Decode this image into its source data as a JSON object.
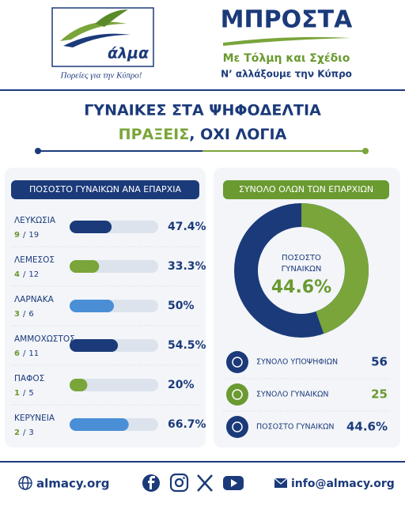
{
  "header": {
    "logo_text": "άλμα",
    "logo_slogan": "Πορείες για την Κύπρο!",
    "title": "ΜΠΡΟΣΤΑ",
    "subtitle": "Με Τόλμη και Σχέδιο",
    "tagline": "Ν’ αλλάξουμε την Κύπρο"
  },
  "headline": {
    "line1": "ΓΥΝΑΙΚΕΣ ΣΤΑ ΨΗΦΟΔΕΛΤΙΑ",
    "line2_accent": "ΠΡΑΞΕΙΣ",
    "line2_rest": ", ΟΧΙ ΛΟΓΙΑ"
  },
  "districts": {
    "title": "ΠΟΣΟΣΤΟ ΓΥΝΑΙΚΩΝ ΑΝΑ ΕΠΑΡΧΙΑ",
    "separator": "/",
    "xlim": [
      0,
      100
    ],
    "rows": [
      {
        "name": "ΛΕΥΚΩΣΙΑ",
        "women": 9,
        "total": 19,
        "percent": 47.4,
        "percent_label": "47.4%",
        "color": "#1b3a7a"
      },
      {
        "name": "ΛΕΜΕΣΟΣ",
        "women": 4,
        "total": 12,
        "percent": 33.3,
        "percent_label": "33.3%",
        "color": "#7aa53a"
      },
      {
        "name": "ΛΑΡΝΑΚΑ",
        "women": 3,
        "total": 6,
        "percent": 50,
        "percent_label": "50%",
        "color": "#4a8fd6"
      },
      {
        "name": "ΑΜΜΟΧΩΣΤΟΣ",
        "women": 6,
        "total": 11,
        "percent": 54.5,
        "percent_label": "54.5%",
        "color": "#1b3a7a"
      },
      {
        "name": "ΠΑΦΟΣ",
        "women": 1,
        "total": 5,
        "percent": 20,
        "percent_label": "20%",
        "color": "#7aa53a"
      },
      {
        "name": "ΚΕΡΥΝΕΙΑ",
        "women": 2,
        "total": 3,
        "percent": 66.7,
        "percent_label": "66.7%",
        "color": "#4a8fd6"
      }
    ]
  },
  "total": {
    "title": "ΣΥΝΟΛΟ ΟΛΩΝ ΤΩΝ ΕΠΑΡΧΙΩΝ",
    "donut_label": [
      "ΠΟΣΟΣΤΟ",
      "ΓΥΝΑΙΚΩΝ"
    ],
    "percent": 44.6,
    "percent_label": "44.6%",
    "range": [
      0,
      100
    ],
    "stats": [
      {
        "label": "ΣΥΝΟΛΟ ΥΠΟΨΗΦΙΩΝ",
        "value": 56
      },
      {
        "label": "ΣΥΝΟΛΟ ΓΥΝΑΙΚΩΝ",
        "value": 25
      },
      {
        "label": "ΠΟΣΟΣΤΟ ΓΥΝΑΙΚΩΝ",
        "value": "44.6%"
      }
    ]
  },
  "footer": {
    "website": "almacy.org",
    "email": "info@almacy.org"
  }
}
